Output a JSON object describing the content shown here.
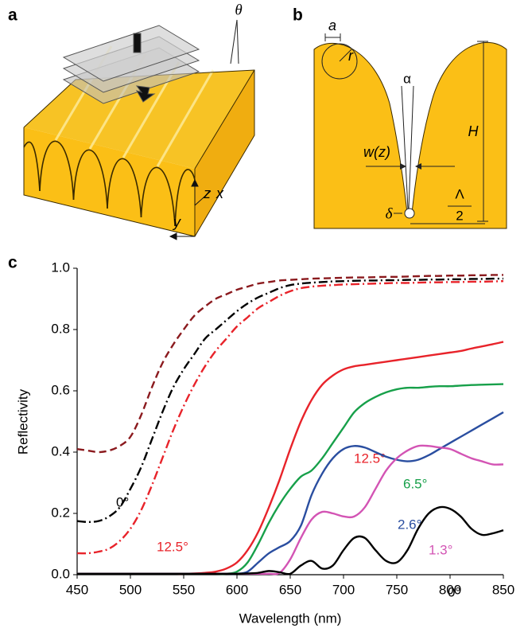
{
  "panel_a": {
    "label": "a",
    "theta": "θ",
    "axis_z": "z",
    "axis_x": "x",
    "axis_y": "y"
  },
  "panel_b": {
    "label": "b",
    "a": "a",
    "r": "r",
    "alpha": "α",
    "H": "H",
    "w": "w(z)",
    "delta": "δ",
    "lambda": "Λ",
    "two": "2"
  },
  "chart_data": {
    "type": "line",
    "panel_label": "c",
    "x_label": "Wavelength (nm)",
    "y_label": "Reflectivity",
    "xlim": [
      450,
      850
    ],
    "ylim": [
      0,
      1
    ],
    "xticks": [
      450,
      500,
      550,
      600,
      650,
      700,
      750,
      800,
      850
    ],
    "yticks": [
      {
        "value": 0,
        "label": "0.0"
      },
      {
        "value": 0.2,
        "label": "0.2"
      },
      {
        "value": 0.4,
        "label": "0.4"
      },
      {
        "value": 0.6,
        "label": "0.6"
      },
      {
        "value": 0.8,
        "label": "0.8"
      },
      {
        "value": 1,
        "label": "1.0"
      }
    ],
    "x": [
      450,
      460,
      470,
      480,
      490,
      500,
      510,
      520,
      530,
      540,
      550,
      560,
      570,
      580,
      590,
      600,
      610,
      620,
      630,
      640,
      650,
      660,
      670,
      680,
      690,
      700,
      710,
      720,
      730,
      740,
      750,
      760,
      770,
      780,
      790,
      800,
      810,
      820,
      830,
      840,
      850
    ],
    "series": [
      {
        "color": "#8b1a1e",
        "style": "dashed",
        "values": [
          0.41,
          0.405,
          0.4,
          0.405,
          0.42,
          0.45,
          0.52,
          0.61,
          0.69,
          0.75,
          0.8,
          0.845,
          0.875,
          0.9,
          0.915,
          0.93,
          0.94,
          0.95,
          0.955,
          0.96,
          0.962,
          0.964,
          0.966,
          0.967,
          0.968,
          0.969,
          0.97,
          0.97,
          0.971,
          0.972,
          0.972,
          0.973,
          0.974,
          0.975,
          0.975,
          0.976,
          0.976,
          0.977,
          0.977,
          0.978,
          0.978
        ]
      },
      {
        "name": "0°",
        "color": "#000000",
        "style": "dashdot",
        "values": [
          0.175,
          0.172,
          0.175,
          0.19,
          0.22,
          0.28,
          0.35,
          0.44,
          0.53,
          0.61,
          0.67,
          0.72,
          0.77,
          0.8,
          0.83,
          0.86,
          0.885,
          0.905,
          0.92,
          0.935,
          0.945,
          0.95,
          0.953,
          0.955,
          0.957,
          0.958,
          0.959,
          0.96,
          0.96,
          0.961,
          0.961,
          0.962,
          0.962,
          0.963,
          0.963,
          0.964,
          0.964,
          0.965,
          0.965,
          0.966,
          0.966
        ]
      },
      {
        "name": "12.5°",
        "color": "#e8232a",
        "style": "dashdot",
        "values": [
          0.07,
          0.07,
          0.075,
          0.085,
          0.11,
          0.15,
          0.21,
          0.29,
          0.38,
          0.47,
          0.55,
          0.62,
          0.68,
          0.73,
          0.77,
          0.81,
          0.84,
          0.87,
          0.89,
          0.91,
          0.925,
          0.935,
          0.94,
          0.943,
          0.945,
          0.947,
          0.948,
          0.949,
          0.95,
          0.951,
          0.952,
          0.952,
          0.953,
          0.954,
          0.954,
          0.955,
          0.955,
          0.956,
          0.956,
          0.957,
          0.958
        ]
      },
      {
        "name": "12.5°",
        "color": "#e8232a",
        "style": "solid",
        "values": [
          0.003,
          0.003,
          0.003,
          0.003,
          0.003,
          0.003,
          0.003,
          0.003,
          0.003,
          0.003,
          0.003,
          0.004,
          0.006,
          0.01,
          0.02,
          0.04,
          0.08,
          0.14,
          0.22,
          0.31,
          0.41,
          0.5,
          0.57,
          0.62,
          0.65,
          0.67,
          0.68,
          0.685,
          0.69,
          0.695,
          0.7,
          0.705,
          0.71,
          0.715,
          0.72,
          0.725,
          0.73,
          0.738,
          0.745,
          0.752,
          0.76
        ]
      },
      {
        "name": "6.5°",
        "color": "#17a04a",
        "style": "solid",
        "values": [
          0.003,
          0.003,
          0.003,
          0.003,
          0.003,
          0.003,
          0.003,
          0.003,
          0.003,
          0.003,
          0.003,
          0.003,
          0.003,
          0.003,
          0.003,
          0.01,
          0.04,
          0.1,
          0.17,
          0.23,
          0.28,
          0.32,
          0.34,
          0.38,
          0.43,
          0.48,
          0.53,
          0.56,
          0.58,
          0.595,
          0.605,
          0.61,
          0.61,
          0.613,
          0.615,
          0.615,
          0.617,
          0.619,
          0.62,
          0.621,
          0.622
        ]
      },
      {
        "name": "2.6°",
        "color": "#2a4ea0",
        "style": "solid",
        "values": [
          0.003,
          0.003,
          0.003,
          0.003,
          0.003,
          0.003,
          0.003,
          0.003,
          0.003,
          0.003,
          0.003,
          0.003,
          0.003,
          0.003,
          0.003,
          0.003,
          0.01,
          0.04,
          0.07,
          0.09,
          0.11,
          0.16,
          0.26,
          0.33,
          0.38,
          0.41,
          0.42,
          0.415,
          0.4,
          0.385,
          0.375,
          0.37,
          0.375,
          0.39,
          0.41,
          0.43,
          0.45,
          0.47,
          0.49,
          0.51,
          0.53
        ]
      },
      {
        "name": "1.3°",
        "color": "#d354b4",
        "style": "solid",
        "values": [
          0.003,
          0.003,
          0.003,
          0.003,
          0.003,
          0.003,
          0.003,
          0.003,
          0.003,
          0.003,
          0.003,
          0.003,
          0.003,
          0.003,
          0.003,
          0.003,
          0.003,
          0.003,
          0.003,
          0.006,
          0.05,
          0.12,
          0.18,
          0.205,
          0.2,
          0.19,
          0.19,
          0.22,
          0.28,
          0.34,
          0.38,
          0.405,
          0.42,
          0.42,
          0.415,
          0.41,
          0.395,
          0.38,
          0.37,
          0.36,
          0.36
        ]
      },
      {
        "name": "0°",
        "color": "#000000",
        "style": "solid",
        "values": [
          0.003,
          0.003,
          0.003,
          0.003,
          0.003,
          0.003,
          0.003,
          0.003,
          0.003,
          0.003,
          0.003,
          0.003,
          0.003,
          0.003,
          0.003,
          0.003,
          0.004,
          0.006,
          0.012,
          0.008,
          0.003,
          0.03,
          0.045,
          0.02,
          0.03,
          0.08,
          0.12,
          0.12,
          0.08,
          0.045,
          0.04,
          0.08,
          0.15,
          0.2,
          0.22,
          0.215,
          0.19,
          0.15,
          0.13,
          0.135,
          0.145
        ]
      }
    ]
  }
}
